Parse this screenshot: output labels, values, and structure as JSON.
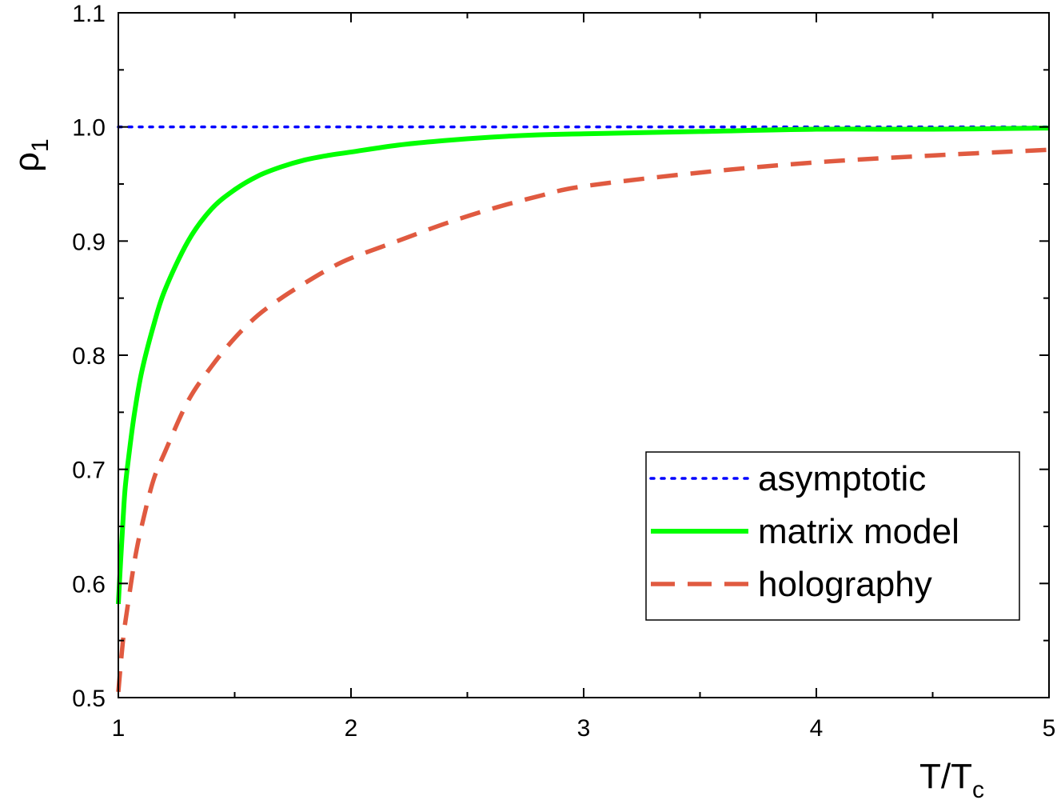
{
  "chart_data": {
    "type": "line",
    "title": "",
    "xlabel": {
      "main": "T/T",
      "sub": "c"
    },
    "ylabel": {
      "main": "ρ",
      "sub": "1"
    },
    "xlim": [
      1,
      5
    ],
    "ylim": [
      0.5,
      1.1
    ],
    "x_ticks": [
      "1",
      "2",
      "3",
      "4",
      "5"
    ],
    "y_ticks": [
      "0.5",
      "0.6",
      "0.7",
      "0.8",
      "0.9",
      "1.0",
      "1.1"
    ],
    "grid": false,
    "legend_position": "lower-right",
    "series": [
      {
        "name": "asymptotic",
        "style": "dotted",
        "color": "#0000ff",
        "x": [
          1,
          5
        ],
        "y": [
          1.0,
          1.0
        ]
      },
      {
        "name": "matrix model",
        "style": "solid",
        "color": "#00ff00",
        "x": [
          1.0,
          1.01,
          1.02,
          1.03,
          1.05,
          1.07,
          1.1,
          1.15,
          1.2,
          1.3,
          1.4,
          1.5,
          1.6,
          1.7,
          1.8,
          1.9,
          2.0,
          2.2,
          2.4,
          2.6,
          2.8,
          3.0,
          3.5,
          4.0,
          4.5,
          5.0
        ],
        "y": [
          0.582,
          0.62,
          0.655,
          0.685,
          0.72,
          0.75,
          0.785,
          0.825,
          0.857,
          0.9,
          0.928,
          0.945,
          0.957,
          0.965,
          0.971,
          0.975,
          0.978,
          0.984,
          0.988,
          0.991,
          0.993,
          0.994,
          0.996,
          0.998,
          0.998,
          0.999
        ]
      },
      {
        "name": "holography",
        "style": "dashed",
        "color": "#e05a40",
        "x": [
          1.0,
          1.02,
          1.04,
          1.07,
          1.1,
          1.15,
          1.2,
          1.3,
          1.4,
          1.5,
          1.6,
          1.7,
          1.8,
          1.9,
          2.0,
          2.2,
          2.4,
          2.6,
          2.8,
          3.0,
          3.5,
          4.0,
          4.5,
          5.0
        ],
        "y": [
          0.505,
          0.55,
          0.58,
          0.62,
          0.65,
          0.69,
          0.715,
          0.76,
          0.79,
          0.815,
          0.835,
          0.85,
          0.863,
          0.875,
          0.885,
          0.9,
          0.915,
          0.928,
          0.939,
          0.948,
          0.96,
          0.969,
          0.975,
          0.98
        ]
      }
    ]
  }
}
